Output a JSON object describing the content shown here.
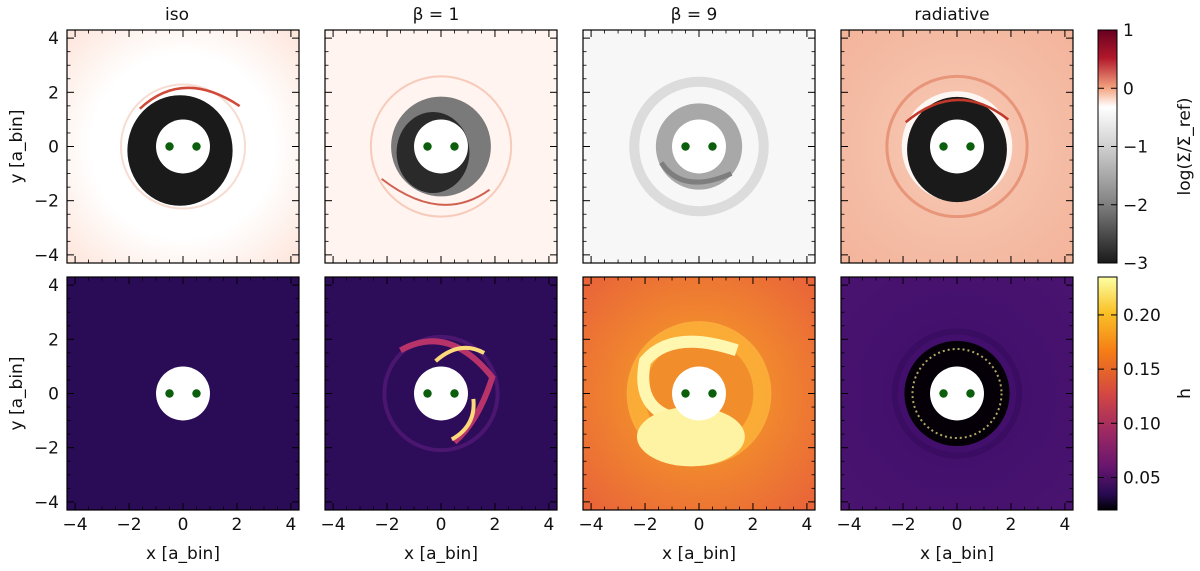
{
  "chart_data": {
    "type": "heatmap",
    "columns": [
      {
        "title": "iso",
        "case": "iso"
      },
      {
        "title": "β = 1",
        "case": "beta1"
      },
      {
        "title": "β = 9",
        "case": "beta9"
      },
      {
        "title": "radiative",
        "case": "radiative"
      }
    ],
    "rows": [
      {
        "quantity": "log(Σ/Σref)",
        "colorbar_label": "log(Σ/Σ_ref)",
        "cmap": "RdGy_r",
        "range": [
          -3,
          1
        ],
        "ticks": [
          "1",
          "0",
          "−1",
          "−2",
          "−3"
        ],
        "tick_values": [
          1,
          0,
          -1,
          -2,
          -3
        ]
      },
      {
        "quantity": "h",
        "colorbar_label": "h",
        "cmap": "inferno",
        "range": [
          0.02,
          0.235
        ],
        "ticks": [
          "0.20",
          "0.15",
          "0.10",
          "0.05"
        ],
        "tick_values": [
          0.2,
          0.15,
          0.1,
          0.05
        ]
      }
    ],
    "xlabel": "x [a_bin]",
    "ylabel": "y [a_bin]",
    "xlim": [
      -4.3,
      4.3
    ],
    "ylim": [
      -4.3,
      4.3
    ],
    "xticks": [
      "−4",
      "−2",
      "0",
      "2",
      "4"
    ],
    "yticks": [
      "4",
      "2",
      "0",
      "−2",
      "−4"
    ],
    "tick_values": [
      -4,
      -2,
      0,
      2,
      4
    ],
    "excised_radius": 1.0,
    "binary_positions": [
      [
        -0.5,
        0
      ],
      [
        0.5,
        0
      ]
    ],
    "binary_color": "#0b5e0b"
  }
}
